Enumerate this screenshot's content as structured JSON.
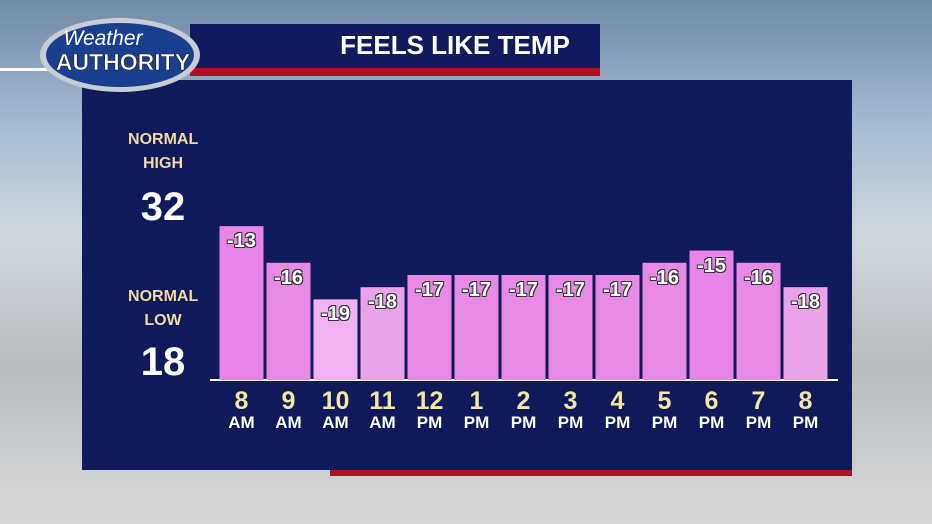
{
  "brand": {
    "line1": "Weather",
    "line2": "AUTHORITY"
  },
  "chart_data": {
    "type": "bar",
    "title": "FEELS LIKE TEMP",
    "annotations": [
      {
        "label": "NORMAL HIGH",
        "value": "32"
      },
      {
        "label": "NORMAL LOW",
        "value": "18"
      }
    ],
    "categories": [
      "8 AM",
      "9 AM",
      "10 AM",
      "11 AM",
      "12 PM",
      "1 PM",
      "2 PM",
      "3 PM",
      "4 PM",
      "5 PM",
      "6 PM",
      "7 PM",
      "8 PM"
    ],
    "values": [
      -13,
      -16,
      -19,
      -18,
      -17,
      -17,
      -17,
      -17,
      -17,
      -16,
      -15,
      -16,
      -18
    ],
    "colors": [
      "#e883e8",
      "#e68ae6",
      "#f0b2f0",
      "#eaa2ea",
      "#e68ae6",
      "#e68ae6",
      "#e68ae6",
      "#e68ae6",
      "#e68ae6",
      "#e68ae6",
      "#e883e8",
      "#e68ae6",
      "#eaa2ea"
    ],
    "ylim": [
      -25.6,
      -1.2
    ]
  }
}
